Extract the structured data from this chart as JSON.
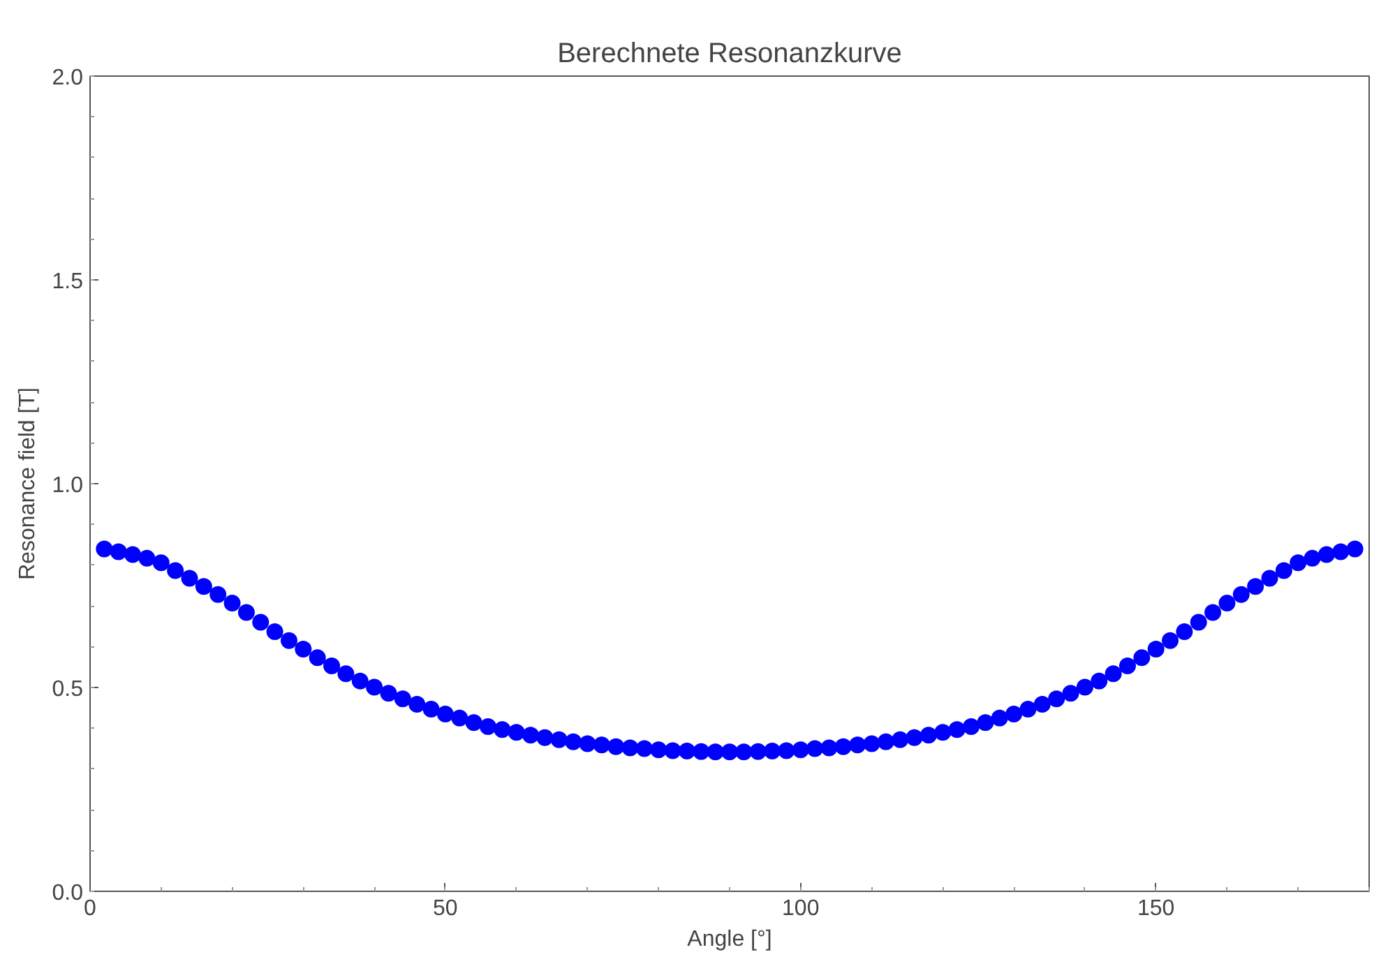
{
  "chart_data": {
    "type": "scatter",
    "title": "Berechnete Resonanzkurve",
    "xlabel": "Angle [°]",
    "ylabel": "Resonance field [T]",
    "x": [
      2,
      4,
      6,
      8,
      10,
      12,
      14,
      16,
      18,
      20,
      22,
      24,
      26,
      28,
      30,
      32,
      34,
      36,
      38,
      40,
      42,
      44,
      46,
      48,
      50,
      52,
      54,
      56,
      58,
      60,
      62,
      64,
      66,
      68,
      70,
      72,
      74,
      76,
      78,
      80,
      82,
      84,
      86,
      88,
      90,
      92,
      94,
      96,
      98,
      100,
      102,
      104,
      106,
      108,
      110,
      112,
      114,
      116,
      118,
      120,
      122,
      124,
      126,
      128,
      130,
      132,
      134,
      136,
      138,
      140,
      142,
      144,
      146,
      148,
      150,
      152,
      154,
      156,
      158,
      160,
      162,
      164,
      166,
      168,
      170,
      172,
      174,
      176,
      178
    ],
    "values": [
      0.84,
      0.833,
      0.826,
      0.817,
      0.806,
      0.787,
      0.768,
      0.748,
      0.728,
      0.707,
      0.684,
      0.66,
      0.637,
      0.615,
      0.594,
      0.573,
      0.553,
      0.534,
      0.516,
      0.501,
      0.486,
      0.472,
      0.459,
      0.447,
      0.435,
      0.425,
      0.414,
      0.404,
      0.397,
      0.39,
      0.383,
      0.377,
      0.372,
      0.367,
      0.362,
      0.359,
      0.355,
      0.352,
      0.35,
      0.347,
      0.345,
      0.344,
      0.343,
      0.342,
      0.342,
      0.342,
      0.343,
      0.344,
      0.345,
      0.347,
      0.35,
      0.352,
      0.355,
      0.359,
      0.362,
      0.367,
      0.372,
      0.377,
      0.383,
      0.39,
      0.397,
      0.404,
      0.414,
      0.425,
      0.435,
      0.447,
      0.459,
      0.472,
      0.486,
      0.501,
      0.516,
      0.534,
      0.553,
      0.573,
      0.594,
      0.615,
      0.637,
      0.66,
      0.684,
      0.707,
      0.728,
      0.748,
      0.768,
      0.787,
      0.806,
      0.817,
      0.826,
      0.833,
      0.84
    ],
    "color": "#0000ff",
    "marker": "circle",
    "xlim": [
      0,
      180
    ],
    "ylim": [
      0,
      2
    ],
    "xticks": [
      0,
      50,
      100,
      150
    ],
    "yticks": [
      {
        "value": 0,
        "label": "0.0"
      },
      0.5,
      {
        "value": 1,
        "label": "1.0"
      },
      1.5,
      {
        "value": 2,
        "label": "2.0"
      }
    ]
  }
}
